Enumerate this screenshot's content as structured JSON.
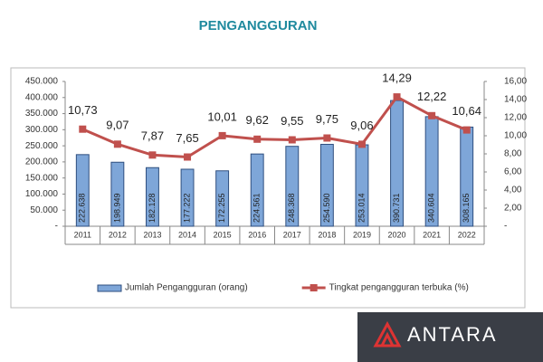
{
  "chart_data": {
    "type": "bar",
    "title": "PENGANGGURAN",
    "categories": [
      "2011",
      "2012",
      "2013",
      "2014",
      "2015",
      "2016",
      "2017",
      "2018",
      "2019",
      "2020",
      "2021",
      "2022"
    ],
    "series": [
      {
        "name": "Jumlah Pengangguran (orang)",
        "type": "bar",
        "color": "#7ea6d8",
        "values": [
          222638,
          198949,
          182128,
          177222,
          172255,
          224561,
          248368,
          254590,
          253014,
          390731,
          340604,
          308165
        ],
        "value_labels": [
          "222.638",
          "198.949",
          "182.128",
          "177.222",
          "172.255",
          "224.561",
          "248.368",
          "254.590",
          "253.014",
          "390.731",
          "340.604",
          "308.165"
        ]
      },
      {
        "name": "Tingkat pengangguran terbuka (%)",
        "type": "line",
        "axis": "y2",
        "color": "#c0504d",
        "values": [
          10.73,
          9.07,
          7.87,
          7.65,
          10.01,
          9.62,
          9.55,
          9.75,
          9.06,
          14.29,
          12.22,
          10.64
        ],
        "value_labels": [
          "10,73",
          "9,07",
          "7,87",
          "7,65",
          "10,01",
          "9,62",
          "9,55",
          "9,75",
          "9,06",
          "14,29",
          "12,22",
          "10,64"
        ]
      }
    ],
    "ylim": [
      0,
      450000
    ],
    "yticks": [
      {
        "value": 0,
        "label": "-"
      },
      {
        "value": 50000,
        "label": "50.000"
      },
      {
        "value": 100000,
        "label": "100.000"
      },
      {
        "value": 150000,
        "label": "150.000"
      },
      {
        "value": 200000,
        "label": "200.000"
      },
      {
        "value": 250000,
        "label": "250.000"
      },
      {
        "value": 300000,
        "label": "300.000"
      },
      {
        "value": 350000,
        "label": "350.000"
      },
      {
        "value": 400000,
        "label": "400.000"
      },
      {
        "value": 450000,
        "label": "450.000"
      }
    ],
    "y2lim": [
      0,
      16
    ],
    "y2ticks": [
      {
        "value": 0,
        "label": "-"
      },
      {
        "value": 2,
        "label": "2,00"
      },
      {
        "value": 4,
        "label": "4,00"
      },
      {
        "value": 6,
        "label": "6,00"
      },
      {
        "value": 8,
        "label": "8,00"
      },
      {
        "value": 10,
        "label": "10,00"
      },
      {
        "value": 12,
        "label": "12,00"
      },
      {
        "value": 14,
        "label": "14,00"
      },
      {
        "value": 16,
        "label": "16,00"
      }
    ],
    "legend": "bottom",
    "watermark": "ANTARA"
  }
}
